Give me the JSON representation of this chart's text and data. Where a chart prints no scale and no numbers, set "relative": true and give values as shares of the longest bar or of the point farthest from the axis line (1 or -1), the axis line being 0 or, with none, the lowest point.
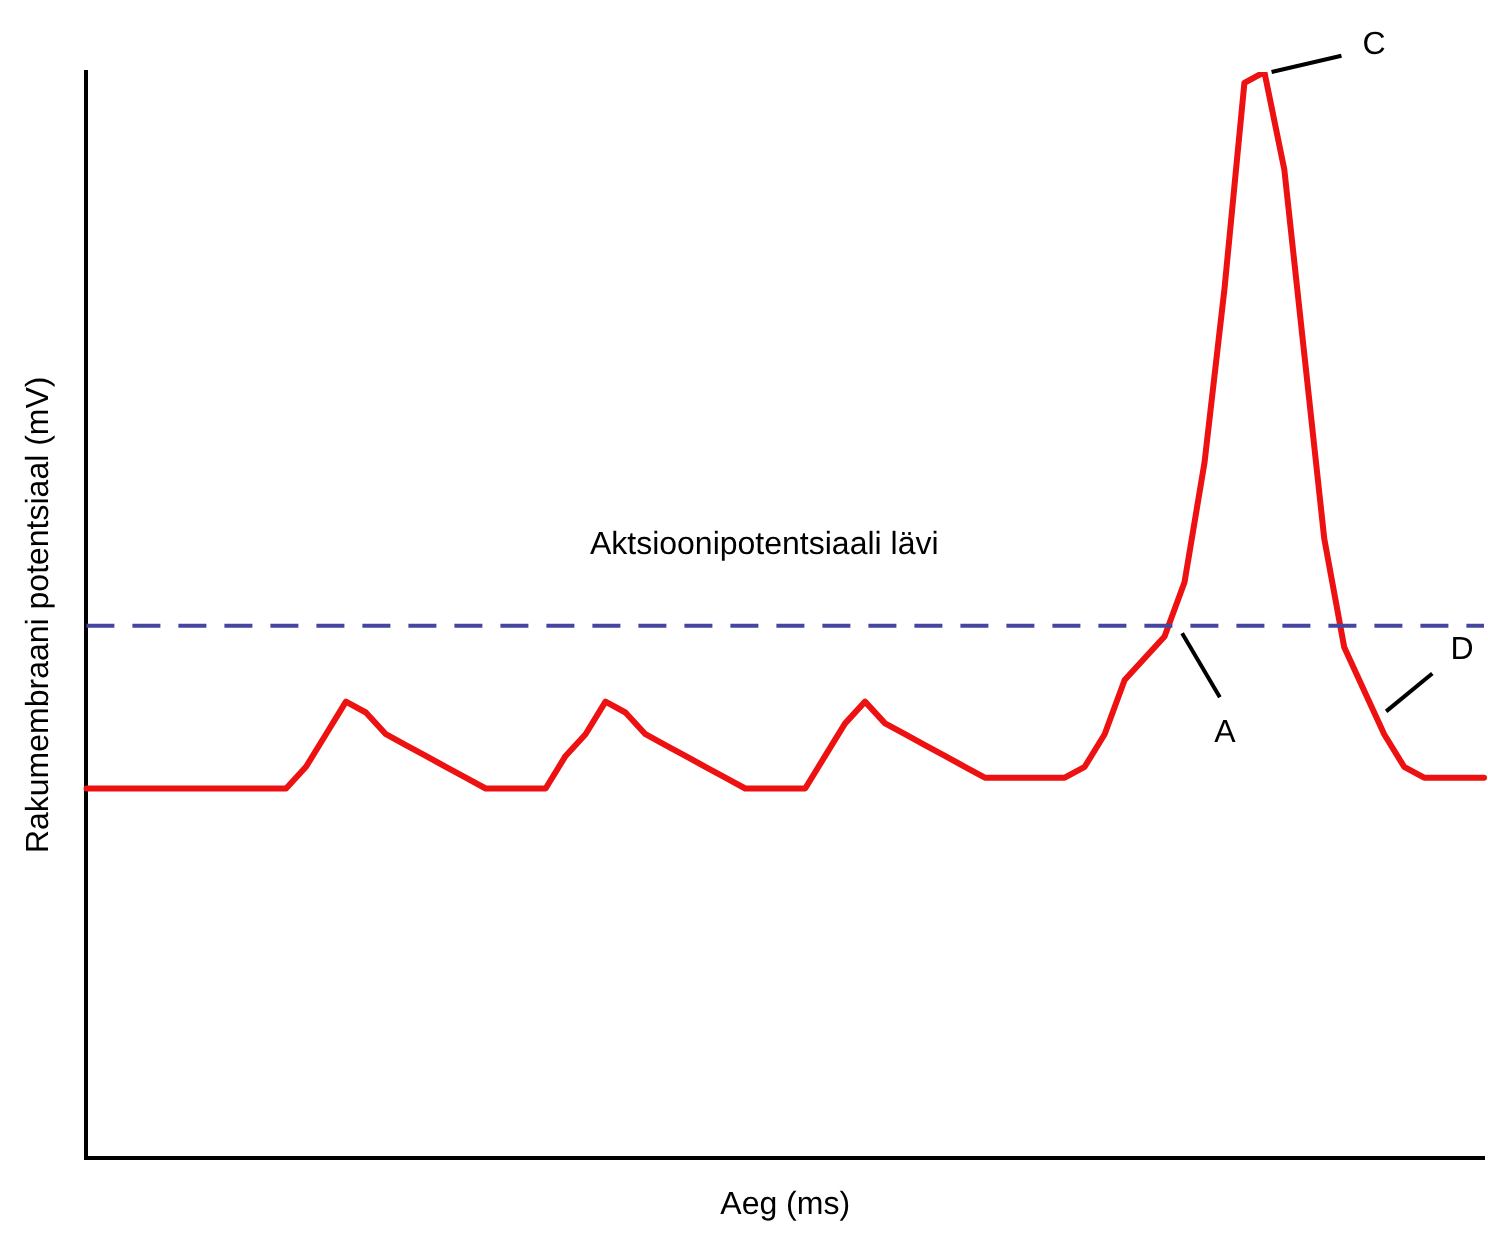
{
  "chart_data": {
    "type": "line",
    "xlabel": "Aeg (ms)",
    "ylabel": "Rakumembraani potentsiaal (mV)",
    "relative": true,
    "marker": "none",
    "categories": [
      null,
      null,
      null,
      null,
      null,
      null,
      null,
      null,
      null,
      null,
      null,
      null,
      null,
      null,
      null,
      null,
      null,
      null,
      null,
      null,
      null,
      null,
      null,
      null,
      null,
      null,
      null,
      null,
      null,
      null,
      null,
      null,
      null,
      null,
      null,
      null,
      null,
      null,
      null,
      null,
      null,
      null,
      null,
      null,
      null,
      null,
      null,
      null,
      null,
      null,
      null,
      null,
      null,
      null,
      null,
      null,
      null,
      null,
      null,
      null,
      null,
      null,
      null,
      null,
      null,
      null,
      null,
      null,
      null,
      null,
      null
    ],
    "series": [
      {
        "color": "#ee1111",
        "values": [
          0.34,
          0.34,
          0.34,
          0.34,
          0.34,
          0.34,
          0.34,
          0.34,
          0.34,
          0.34,
          0.34,
          0.36,
          0.39,
          0.42,
          0.41,
          0.39,
          0.38,
          0.37,
          0.36,
          0.35,
          0.34,
          0.34,
          0.34,
          0.34,
          0.37,
          0.39,
          0.42,
          0.41,
          0.39,
          0.38,
          0.37,
          0.36,
          0.35,
          0.34,
          0.34,
          0.34,
          0.34,
          0.37,
          0.4,
          0.42,
          0.4,
          0.39,
          0.38,
          0.37,
          0.36,
          0.35,
          0.35,
          0.35,
          0.35,
          0.35,
          0.36,
          0.39,
          0.44,
          0.46,
          0.48,
          0.53,
          0.64,
          0.8,
          0.99,
          1,
          0.91,
          0.74,
          0.57,
          0.47,
          0.43,
          0.39,
          0.36,
          0.35,
          0.35,
          0.35,
          0.35
        ]
      }
    ],
    "ref_lines": [
      {
        "axis": "y",
        "value": 0.49,
        "label": "Aktsioonipotentsiaali lävi",
        "color": "#4646a0",
        "line_style": "dashed"
      }
    ],
    "annotations": [
      "A",
      "C",
      "D"
    ]
  }
}
